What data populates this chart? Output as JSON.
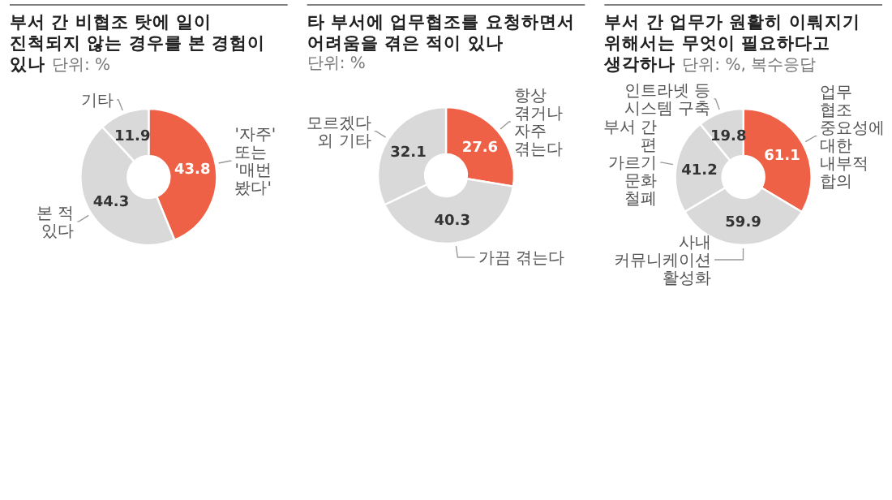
{
  "chart_data": [
    {
      "type": "donut",
      "title": "부서 간 비협조 탓에 일이 진척되지 않는 경우를 본 경험이 있나",
      "subtitle": "단위: %",
      "categories": [
        "'자주' 또는 '매번 봤다'",
        "본 적 있다",
        "기타"
      ],
      "values": [
        43.8,
        44.3,
        11.9
      ],
      "colors": [
        "#ee6146",
        "#d9d9d9",
        "#d9d9d9"
      ],
      "data_labels": true
    },
    {
      "type": "donut",
      "title": "타 부서에 업무협조를 요청하면서 어려움을 겪은 적이 있나",
      "subtitle": "단위: %",
      "categories": [
        "항상 겪거나 자주 겪는다",
        "가끔 겪는다",
        "모르겠다 외 기타"
      ],
      "values": [
        27.6,
        40.3,
        32.1
      ],
      "colors": [
        "#ee6146",
        "#d9d9d9",
        "#d9d9d9"
      ],
      "data_labels": true
    },
    {
      "type": "donut",
      "title": "부서 간 업무가 원활히 이뤄지기 위해서는 무엇이 필요하다고 생각하나",
      "subtitle": "단위: %, 복수응답",
      "categories": [
        "업무 협조 중요성에 대한 내부적 합의",
        "사내 커뮤니케이션 활성화",
        "부서 간 편 가르기 문화 철폐",
        "인트라넷 등 시스템 구축"
      ],
      "values": [
        61.1,
        59.9,
        41.2,
        19.8
      ],
      "colors": [
        "#ee6146",
        "#d9d9d9",
        "#d9d9d9",
        "#d9d9d9"
      ],
      "data_labels": true
    }
  ]
}
